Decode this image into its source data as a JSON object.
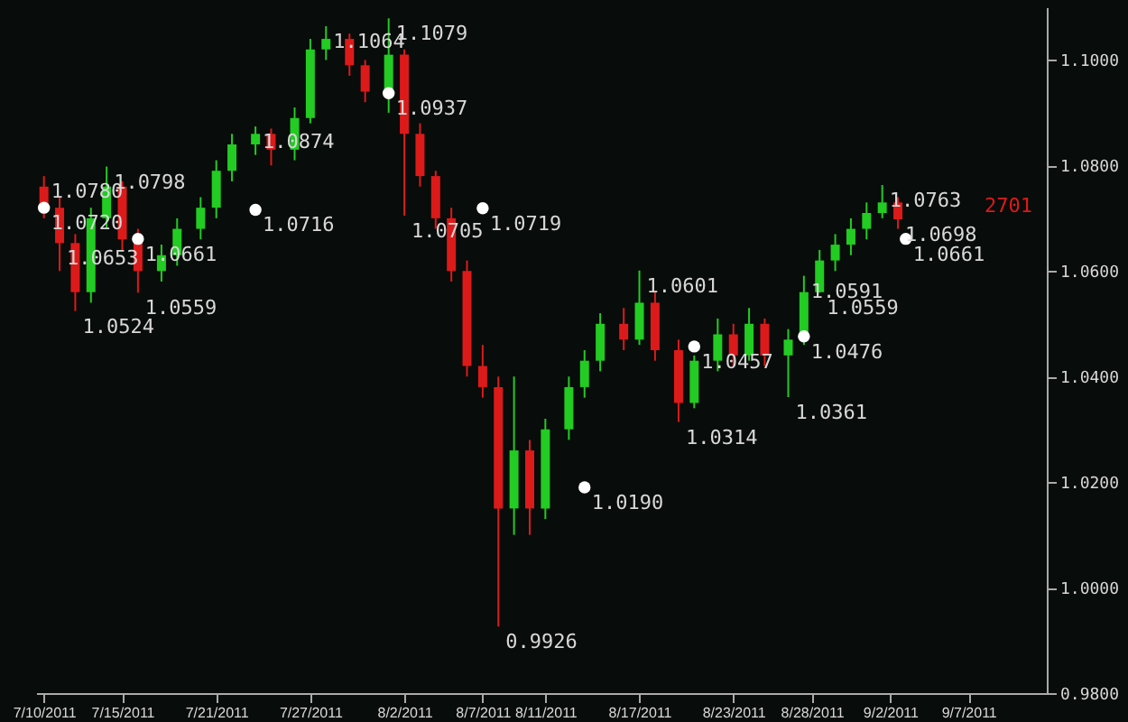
{
  "chart_data": {
    "type": "candlestick",
    "x": [
      "2011-07-10",
      "2011-07-11",
      "2011-07-12",
      "2011-07-13",
      "2011-07-14",
      "2011-07-15",
      "2011-07-16",
      "2011-07-17T12:00",
      "2011-07-18T12:00",
      "2011-07-20",
      "2011-07-21",
      "2011-07-22",
      "2011-07-23T12:00",
      "2011-07-24T12:00",
      "2011-07-26",
      "2011-07-27",
      "2011-07-28",
      "2011-07-29T12:00",
      "2011-07-30T12:00",
      "2011-08-01",
      "2011-08-02",
      "2011-08-03",
      "2011-08-04",
      "2011-08-05",
      "2011-08-06",
      "2011-08-07",
      "2011-08-08",
      "2011-08-09",
      "2011-08-10",
      "2011-08-11",
      "2011-08-12T12:00",
      "2011-08-13T12:00",
      "2011-08-14T12:00",
      "2011-08-16",
      "2011-08-17",
      "2011-08-18",
      "2011-08-19T12:00",
      "2011-08-20T12:00",
      "2011-08-22",
      "2011-08-23",
      "2011-08-24",
      "2011-08-25",
      "2011-08-26T12:00",
      "2011-08-27T12:00",
      "2011-08-28T12:00",
      "2011-08-29T12:00",
      "2011-08-30T12:00",
      "2011-08-31T12:00",
      "2011-09-01T12:00",
      "2011-09-02T12:00"
    ],
    "ohlc": [
      [
        1.076,
        1.078,
        1.07,
        1.072
      ],
      [
        1.072,
        1.074,
        1.06,
        1.0653
      ],
      [
        1.0653,
        1.067,
        1.0524,
        1.056
      ],
      [
        1.056,
        1.072,
        1.054,
        1.07
      ],
      [
        1.07,
        1.0798,
        1.068,
        1.076
      ],
      [
        1.076,
        1.077,
        1.064,
        1.066
      ],
      [
        1.066,
        1.068,
        1.0559,
        1.06
      ],
      [
        1.06,
        1.065,
        1.058,
        1.063
      ],
      [
        1.063,
        1.07,
        1.061,
        1.068
      ],
      [
        1.068,
        1.074,
        1.066,
        1.072
      ],
      [
        1.072,
        1.081,
        1.07,
        1.079
      ],
      [
        1.079,
        1.086,
        1.077,
        1.084
      ],
      [
        1.084,
        1.0874,
        1.082,
        1.086
      ],
      [
        1.086,
        1.087,
        1.08,
        1.083
      ],
      [
        1.083,
        1.091,
        1.081,
        1.089
      ],
      [
        1.089,
        1.104,
        1.088,
        1.102
      ],
      [
        1.102,
        1.1064,
        1.1,
        1.104
      ],
      [
        1.104,
        1.105,
        1.097,
        1.099
      ],
      [
        1.099,
        1.1,
        1.092,
        1.094
      ],
      [
        1.094,
        1.1079,
        1.09,
        1.101
      ],
      [
        1.101,
        1.102,
        1.0705,
        1.086
      ],
      [
        1.086,
        1.088,
        1.076,
        1.078
      ],
      [
        1.078,
        1.079,
        1.068,
        1.07
      ],
      [
        1.07,
        1.072,
        1.058,
        1.06
      ],
      [
        1.06,
        1.062,
        1.04,
        1.042
      ],
      [
        1.042,
        1.046,
        1.036,
        1.038
      ],
      [
        1.038,
        1.04,
        0.9926,
        1.015
      ],
      [
        1.015,
        1.04,
        1.01,
        1.026
      ],
      [
        1.026,
        1.028,
        1.01,
        1.015
      ],
      [
        1.015,
        1.032,
        1.013,
        1.03
      ],
      [
        1.03,
        1.04,
        1.028,
        1.038
      ],
      [
        1.038,
        1.045,
        1.036,
        1.043
      ],
      [
        1.043,
        1.052,
        1.041,
        1.05
      ],
      [
        1.05,
        1.053,
        1.045,
        1.047
      ],
      [
        1.047,
        1.0601,
        1.046,
        1.054
      ],
      [
        1.054,
        1.056,
        1.043,
        1.045
      ],
      [
        1.045,
        1.047,
        1.0314,
        1.035
      ],
      [
        1.035,
        1.044,
        1.034,
        1.043
      ],
      [
        1.043,
        1.051,
        1.041,
        1.048
      ],
      [
        1.048,
        1.05,
        1.042,
        1.044
      ],
      [
        1.044,
        1.053,
        1.043,
        1.05
      ],
      [
        1.05,
        1.051,
        1.042,
        1.044
      ],
      [
        1.044,
        1.049,
        1.0361,
        1.047
      ],
      [
        1.047,
        1.0591,
        1.046,
        1.056
      ],
      [
        1.056,
        1.064,
        1.0559,
        1.062
      ],
      [
        1.062,
        1.067,
        1.06,
        1.065
      ],
      [
        1.065,
        1.07,
        1.063,
        1.068
      ],
      [
        1.068,
        1.073,
        1.066,
        1.071
      ],
      [
        1.071,
        1.0763,
        1.07,
        1.073
      ],
      [
        1.073,
        1.074,
        1.068,
        1.0698
      ]
    ],
    "series": [
      {
        "type": "scatter",
        "color": "#ffffff",
        "x": [
          "2011-07-10",
          "2011-07-16",
          "2011-07-23T12:00",
          "2011-08-01",
          "2011-08-07",
          "2011-08-13T12:00",
          "2011-08-20T12:00",
          "2011-08-27T12:00",
          "2011-09-03"
        ],
        "values": [
          1.072,
          1.0661,
          1.0716,
          1.0937,
          1.0719,
          1.019,
          1.0457,
          1.0476,
          1.0661
        ]
      }
    ],
    "xlim": [
      "2011-07-09T12:00",
      "2011-09-12"
    ],
    "xticks": [
      {
        "value": "2011-07-10",
        "label": "7/10/2011"
      },
      {
        "value": "2011-07-15",
        "label": "7/15/2011"
      },
      {
        "value": "2011-07-21",
        "label": "7/21/2011"
      },
      {
        "value": "2011-07-27",
        "label": "7/27/2011"
      },
      {
        "value": "2011-08-02",
        "label": "8/2/2011"
      },
      {
        "value": "2011-08-07",
        "label": "8/7/2011"
      },
      {
        "value": "2011-08-11",
        "label": "8/11/2011"
      },
      {
        "value": "2011-08-17",
        "label": "8/17/2011"
      },
      {
        "value": "2011-08-23",
        "label": "8/23/2011"
      },
      {
        "value": "2011-08-28",
        "label": "8/28/2011"
      },
      {
        "value": "2011-09-02",
        "label": "9/2/2011"
      },
      {
        "value": "2011-09-07",
        "label": "9/7/2011"
      }
    ],
    "ylim": [
      0.98,
      1.11
    ],
    "yticks": [
      {
        "value": 0.98,
        "label": "0.9800"
      },
      {
        "value": 1.0,
        "label": "1.0000"
      },
      {
        "value": 1.02,
        "label": "1.0200"
      },
      {
        "value": 1.04,
        "label": "1.0400"
      },
      {
        "value": 1.06,
        "label": "1.0600"
      },
      {
        "value": 1.08,
        "label": "1.0800"
      },
      {
        "value": 1.1,
        "label": "1.1000"
      }
    ],
    "grid": false,
    "annotations": [
      {
        "text": "1.0720",
        "x": "2011-07-10",
        "y": 1.072
      },
      {
        "text": "1.0661",
        "x": "2011-07-16",
        "y": 1.0661
      },
      {
        "text": "1.0716",
        "x": "2011-07-23T12:00",
        "y": 1.0716
      },
      {
        "text": "1.0937",
        "x": "2011-08-01",
        "y": 1.0937
      },
      {
        "text": "1.0719",
        "x": "2011-08-07",
        "y": 1.0719
      },
      {
        "text": "1.0190",
        "x": "2011-08-13T12:00",
        "y": 1.019
      },
      {
        "text": "1.0457",
        "x": "2011-08-20T12:00",
        "y": 1.0457
      },
      {
        "text": "1.0476",
        "x": "2011-08-27T12:00",
        "y": 1.0476
      },
      {
        "text": "1.0661",
        "x": "2011-09-03",
        "y": 1.0661
      },
      {
        "text": "1.0780",
        "x": "2011-07-10",
        "y": 1.078
      },
      {
        "text": "1.0653",
        "x": "2011-07-11",
        "y": 1.0653
      },
      {
        "text": "1.0524",
        "x": "2011-07-12",
        "y": 1.0524
      },
      {
        "text": "1.0798",
        "x": "2011-07-14",
        "y": 1.0798
      },
      {
        "text": "1.0559",
        "x": "2011-07-16",
        "y": 1.0559
      },
      {
        "text": "1.0874",
        "x": "2011-07-23T12:00",
        "y": 1.0874
      },
      {
        "text": "1.1079",
        "x": "2011-08-01",
        "y": 1.1079
      },
      {
        "text": "1.1064",
        "x": "2011-07-28",
        "y": 1.1064
      },
      {
        "text": "1.0705",
        "x": "2011-08-02",
        "y": 1.0705
      },
      {
        "text": "1.0601",
        "x": "2011-08-17",
        "y": 1.0601
      },
      {
        "text": "1.0591",
        "x": "2011-08-27T12:00",
        "y": 1.0591
      },
      {
        "text": "1.0763",
        "x": "2011-09-01T12:00",
        "y": 1.0763
      },
      {
        "text": "1.0559",
        "x": "2011-08-28T12:00",
        "y": 1.0559
      },
      {
        "text": "1.0361",
        "x": "2011-08-26T12:00",
        "y": 1.0361
      },
      {
        "text": "1.0314",
        "x": "2011-08-19T12:00",
        "y": 1.0314
      },
      {
        "text": "0.9926",
        "x": "2011-08-08",
        "y": 0.9926
      },
      {
        "text": "1.0698",
        "x": "2011-09-02T12:00",
        "y": 1.0698
      },
      "2701"
    ]
  }
}
